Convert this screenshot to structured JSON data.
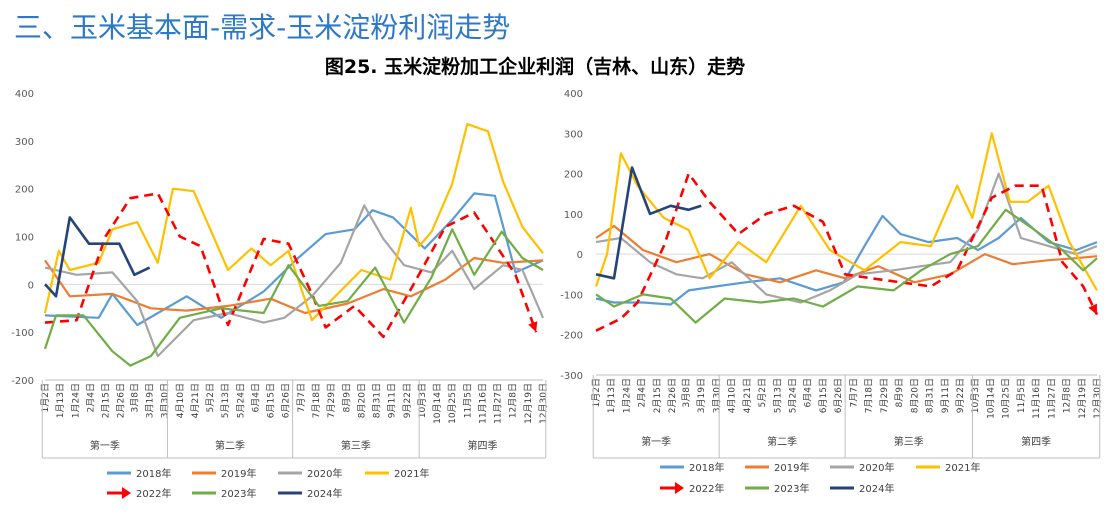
{
  "header": {
    "section_title": "三、玉米基本面-需求-玉米淀粉利润走势",
    "figure_title": "图25. 玉米淀粉加工企业利润（吉林、山东）走势"
  },
  "legend": [
    {
      "label": "2018年",
      "color": "#5b9bd5"
    },
    {
      "label": "2019年",
      "color": "#ed7d31"
    },
    {
      "label": "2020年",
      "color": "#a5a5a5"
    },
    {
      "label": "2021年",
      "color": "#ffc000"
    },
    {
      "label": "2022年",
      "color": "#ff0000"
    },
    {
      "label": "2023年",
      "color": "#70ad47"
    },
    {
      "label": "2024年",
      "color": "#264478"
    }
  ],
  "chart_data": [
    {
      "type": "line",
      "title": "",
      "ylim": [
        -200,
        400
      ],
      "yticks": [
        "400",
        "300",
        "200",
        "100",
        "0",
        "-100",
        "-200"
      ],
      "date_ticks": [
        "1月2日",
        "1月13日",
        "1月24日",
        "2月4日",
        "2月15日",
        "2月26日",
        "3月8日",
        "3月19日",
        "3月30日",
        "4月10日",
        "4月21日",
        "5月2日",
        "5月13日",
        "5月24日",
        "6月4日",
        "6月15日",
        "6月26日",
        "7月7日",
        "7月18日",
        "7月29日",
        "8月9日",
        "8月20日",
        "8月31日",
        "9月11日",
        "9月22日",
        "10月3日",
        "10月14日",
        "10月25日",
        "11月5日",
        "11月16日",
        "11月27日",
        "12月8日",
        "12月19日",
        "12月30日"
      ],
      "quarters": [
        "第一季",
        "第二季",
        "第三季",
        "第四季"
      ],
      "series": [
        {
          "name": "2018年",
          "x": [
            "1月2日",
            "2月10日",
            "2月20日",
            "3月10日",
            "4月15日",
            "5月10日",
            "6月10日",
            "7月5日",
            "7月25日",
            "8月15日",
            "8月28日",
            "9月12日",
            "10月5日",
            "10月25日",
            "11月10日",
            "11月25日",
            "12月10日",
            "12月30日"
          ],
          "values": [
            -65,
            -70,
            -20,
            -85,
            -25,
            -70,
            -15,
            55,
            105,
            115,
            155,
            140,
            75,
            135,
            190,
            185,
            25,
            50
          ]
        },
        {
          "name": "2019年",
          "x": [
            "1月2日",
            "1月20日",
            "2月20日",
            "3月20日",
            "4月15日",
            "5月15日",
            "6月15日",
            "7月10日",
            "8月10日",
            "9月5日",
            "9月25日",
            "10月20日",
            "11月10日",
            "12月1日",
            "12月30日"
          ],
          "values": [
            50,
            -25,
            -20,
            -50,
            -55,
            -45,
            -30,
            -60,
            -40,
            -10,
            -25,
            10,
            55,
            45,
            50
          ]
        },
        {
          "name": "2020年",
          "x": [
            "1月2日",
            "1月25日",
            "2月20日",
            "3月10日",
            "3月25日",
            "4月20日",
            "5月15日",
            "6月10日",
            "6月25日",
            "7月15日",
            "8月5日",
            "8月22日",
            "9月5日",
            "9月20日",
            "10月10日",
            "10月25日",
            "11月10日",
            "12月1日",
            "12月15日",
            "12月30日"
          ],
          "values": [
            35,
            20,
            25,
            -35,
            -150,
            -75,
            -60,
            -80,
            -70,
            -25,
            45,
            165,
            95,
            40,
            25,
            70,
            -10,
            40,
            30,
            -70
          ]
        },
        {
          "name": "2021年",
          "x": [
            "1月2日",
            "1月12日",
            "1月20日",
            "2月10日",
            "2月20日",
            "3月10日",
            "3月25日",
            "4月5日",
            "4月20日",
            "5月15日",
            "6月1日",
            "6月15日",
            "6月28日",
            "7月15日",
            "8月1日",
            "8月20日",
            "9月10日",
            "9月25日",
            "10月1日",
            "10月10日",
            "10月25日",
            "11月5日",
            "11月20日",
            "12月1日",
            "12月15日",
            "12月30日"
          ],
          "values": [
            -60,
            70,
            30,
            45,
            115,
            130,
            45,
            200,
            195,
            30,
            75,
            40,
            70,
            -75,
            -25,
            30,
            10,
            160,
            80,
            110,
            210,
            335,
            320,
            215,
            120,
            65
          ]
        },
        {
          "name": "2022年",
          "x": [
            "1月2日",
            "1月25日",
            "2月15日",
            "3月5日",
            "3月25日",
            "4月10日",
            "4月25日",
            "5月15日",
            "6月10日",
            "6月28日",
            "7月15日",
            "7月25日",
            "8月15日",
            "9月5日",
            "9月25日",
            "10月20日",
            "11月10日",
            "11月25日",
            "12月10日",
            "12月25日"
          ],
          "values": [
            -80,
            -75,
            100,
            180,
            190,
            100,
            80,
            -85,
            95,
            85,
            -20,
            -90,
            -45,
            -110,
            -10,
            120,
            150,
            85,
            20,
            -100
          ]
        },
        {
          "name": "2023年",
          "x": [
            "1月2日",
            "1月10日",
            "1月30日",
            "2月20日",
            "3月5日",
            "3月20日",
            "4月10日",
            "5月10日",
            "6月10日",
            "6月28日",
            "7月20日",
            "8月10日",
            "8月30日",
            "9月20日",
            "10月10日",
            "10月25日",
            "11月10日",
            "11月30日",
            "12月15日",
            "12月30日"
          ],
          "values": [
            -135,
            -65,
            -65,
            -140,
            -170,
            -150,
            -70,
            -50,
            -60,
            40,
            -45,
            -35,
            35,
            -80,
            15,
            115,
            20,
            110,
            55,
            30
          ]
        },
        {
          "name": "2024年",
          "x": [
            "1月2日",
            "1月10日",
            "1月20日",
            "2月3日",
            "2月25日",
            "3月8日",
            "3月19日"
          ],
          "values": [
            0,
            -25,
            140,
            85,
            85,
            20,
            35
          ]
        }
      ]
    },
    {
      "type": "line",
      "title": "",
      "ylim": [
        -300,
        400
      ],
      "yticks": [
        "400",
        "300",
        "200",
        "100",
        "0",
        "-100",
        "-200",
        "-300"
      ],
      "date_ticks": [
        "1月2日",
        "1月13日",
        "1月24日",
        "2月4日",
        "2月15日",
        "2月26日",
        "3月8日",
        "3月19日",
        "3月30日",
        "4月10日",
        "4月21日",
        "5月2日",
        "5月13日",
        "5月24日",
        "6月4日",
        "6月15日",
        "6月26日",
        "7月7日",
        "7月18日",
        "7月29日",
        "8月9日",
        "8月20日",
        "8月31日",
        "9月11日",
        "9月22日",
        "10月3日",
        "10月14日",
        "10月25日",
        "11月5日",
        "11月16日",
        "11月27日",
        "12月8日",
        "12月19日",
        "12月30日"
      ],
      "quarters": [
        "第一季",
        "第二季",
        "第三季",
        "第四季"
      ],
      "series": [
        {
          "name": "2018年",
          "x": [
            "1月2日",
            "1月15日",
            "2月5日",
            "2月25日",
            "3月10日",
            "3月30日",
            "4月20日",
            "5月15日",
            "6月10日",
            "6月30日",
            "7月15日",
            "7月28日",
            "8月10日",
            "8月30日",
            "9月20日",
            "10月5日",
            "10月20日",
            "11月5日",
            "11月25日",
            "12月15日",
            "12月30日"
          ],
          "values": [
            -110,
            -120,
            -120,
            -125,
            -90,
            -80,
            -70,
            -60,
            -90,
            -70,
            20,
            95,
            50,
            30,
            40,
            10,
            40,
            90,
            30,
            10,
            30
          ]
        },
        {
          "name": "2019年",
          "x": [
            "1月2日",
            "1月15日",
            "2月5日",
            "3月1日",
            "3月25日",
            "4月20日",
            "5月15日",
            "6月10日",
            "7月1日",
            "7月25日",
            "8月20日",
            "9月15日",
            "10月10日",
            "10月30日",
            "11月25日",
            "12月15日",
            "12月30日"
          ],
          "values": [
            40,
            70,
            10,
            -20,
            0,
            -50,
            -70,
            -40,
            -60,
            -30,
            -70,
            -50,
            0,
            -25,
            -15,
            -10,
            -5
          ]
        },
        {
          "name": "2020年",
          "x": [
            "1月2日",
            "1月20日",
            "2月10日",
            "3月1日",
            "3月20日",
            "4月10日",
            "5月5日",
            "5月30日",
            "6月20日",
            "7月10日",
            "8月5日",
            "8月25日",
            "9月15日",
            "10月5日",
            "10月20日",
            "11月5日",
            "11月25日",
            "12月15日",
            "12月30日"
          ],
          "values": [
            30,
            40,
            -20,
            -50,
            -60,
            -20,
            -100,
            -120,
            -90,
            -50,
            -40,
            -30,
            -20,
            60,
            200,
            40,
            20,
            0,
            20
          ]
        },
        {
          "name": "2021年",
          "x": [
            "1月2日",
            "1月10日",
            "1月20日",
            "2月1日",
            "2月20日",
            "3月10日",
            "3月25日",
            "4月15日",
            "5月5日",
            "5月30日",
            "6月20日",
            "7月15日",
            "8月10日",
            "9月1日",
            "9月20日",
            "10月1日",
            "10月15日",
            "10月28日",
            "11月10日",
            "11月25日",
            "12月10日",
            "12月25日",
            "12月30日"
          ],
          "values": [
            -80,
            0,
            250,
            170,
            90,
            60,
            -60,
            30,
            -20,
            120,
            10,
            -40,
            30,
            20,
            170,
            90,
            300,
            130,
            130,
            170,
            30,
            -60,
            -90
          ]
        },
        {
          "name": "2022年",
          "x": [
            "1月2日",
            "1月20日",
            "2月1日",
            "2月20日",
            "3月10日",
            "3月25日",
            "4月15日",
            "5月5日",
            "5月25日",
            "6月15日",
            "7月1日",
            "7月20日",
            "8月10日",
            "9月1日",
            "9月20日",
            "10月15日",
            "11月1日",
            "11月20日",
            "12月5日",
            "12月20日",
            "12月30日"
          ],
          "values": [
            -190,
            -160,
            -120,
            20,
            200,
            130,
            50,
            100,
            120,
            80,
            -50,
            -60,
            -70,
            -80,
            -40,
            140,
            170,
            170,
            -20,
            -80,
            -150
          ]
        },
        {
          "name": "2023年",
          "x": [
            "1月2日",
            "1月15日",
            "2月5日",
            "2月25日",
            "3月15日",
            "4月5日",
            "5月1日",
            "5月25日",
            "6月15日",
            "7月10日",
            "8月5日",
            "8月25日",
            "9月15日",
            "10月5日",
            "10月25日",
            "11月15日",
            "12月5日",
            "12月20日",
            "12月30日"
          ],
          "values": [
            -100,
            -130,
            -100,
            -110,
            -170,
            -110,
            -120,
            -110,
            -130,
            -80,
            -90,
            -40,
            0,
            20,
            110,
            60,
            10,
            -40,
            -10
          ]
        },
        {
          "name": "2024年",
          "x": [
            "1月2日",
            "1月15日",
            "1月28日",
            "2月10日",
            "2月25日",
            "3月10日",
            "3月19日"
          ],
          "values": [
            -50,
            -60,
            215,
            100,
            120,
            110,
            120
          ]
        }
      ]
    }
  ]
}
